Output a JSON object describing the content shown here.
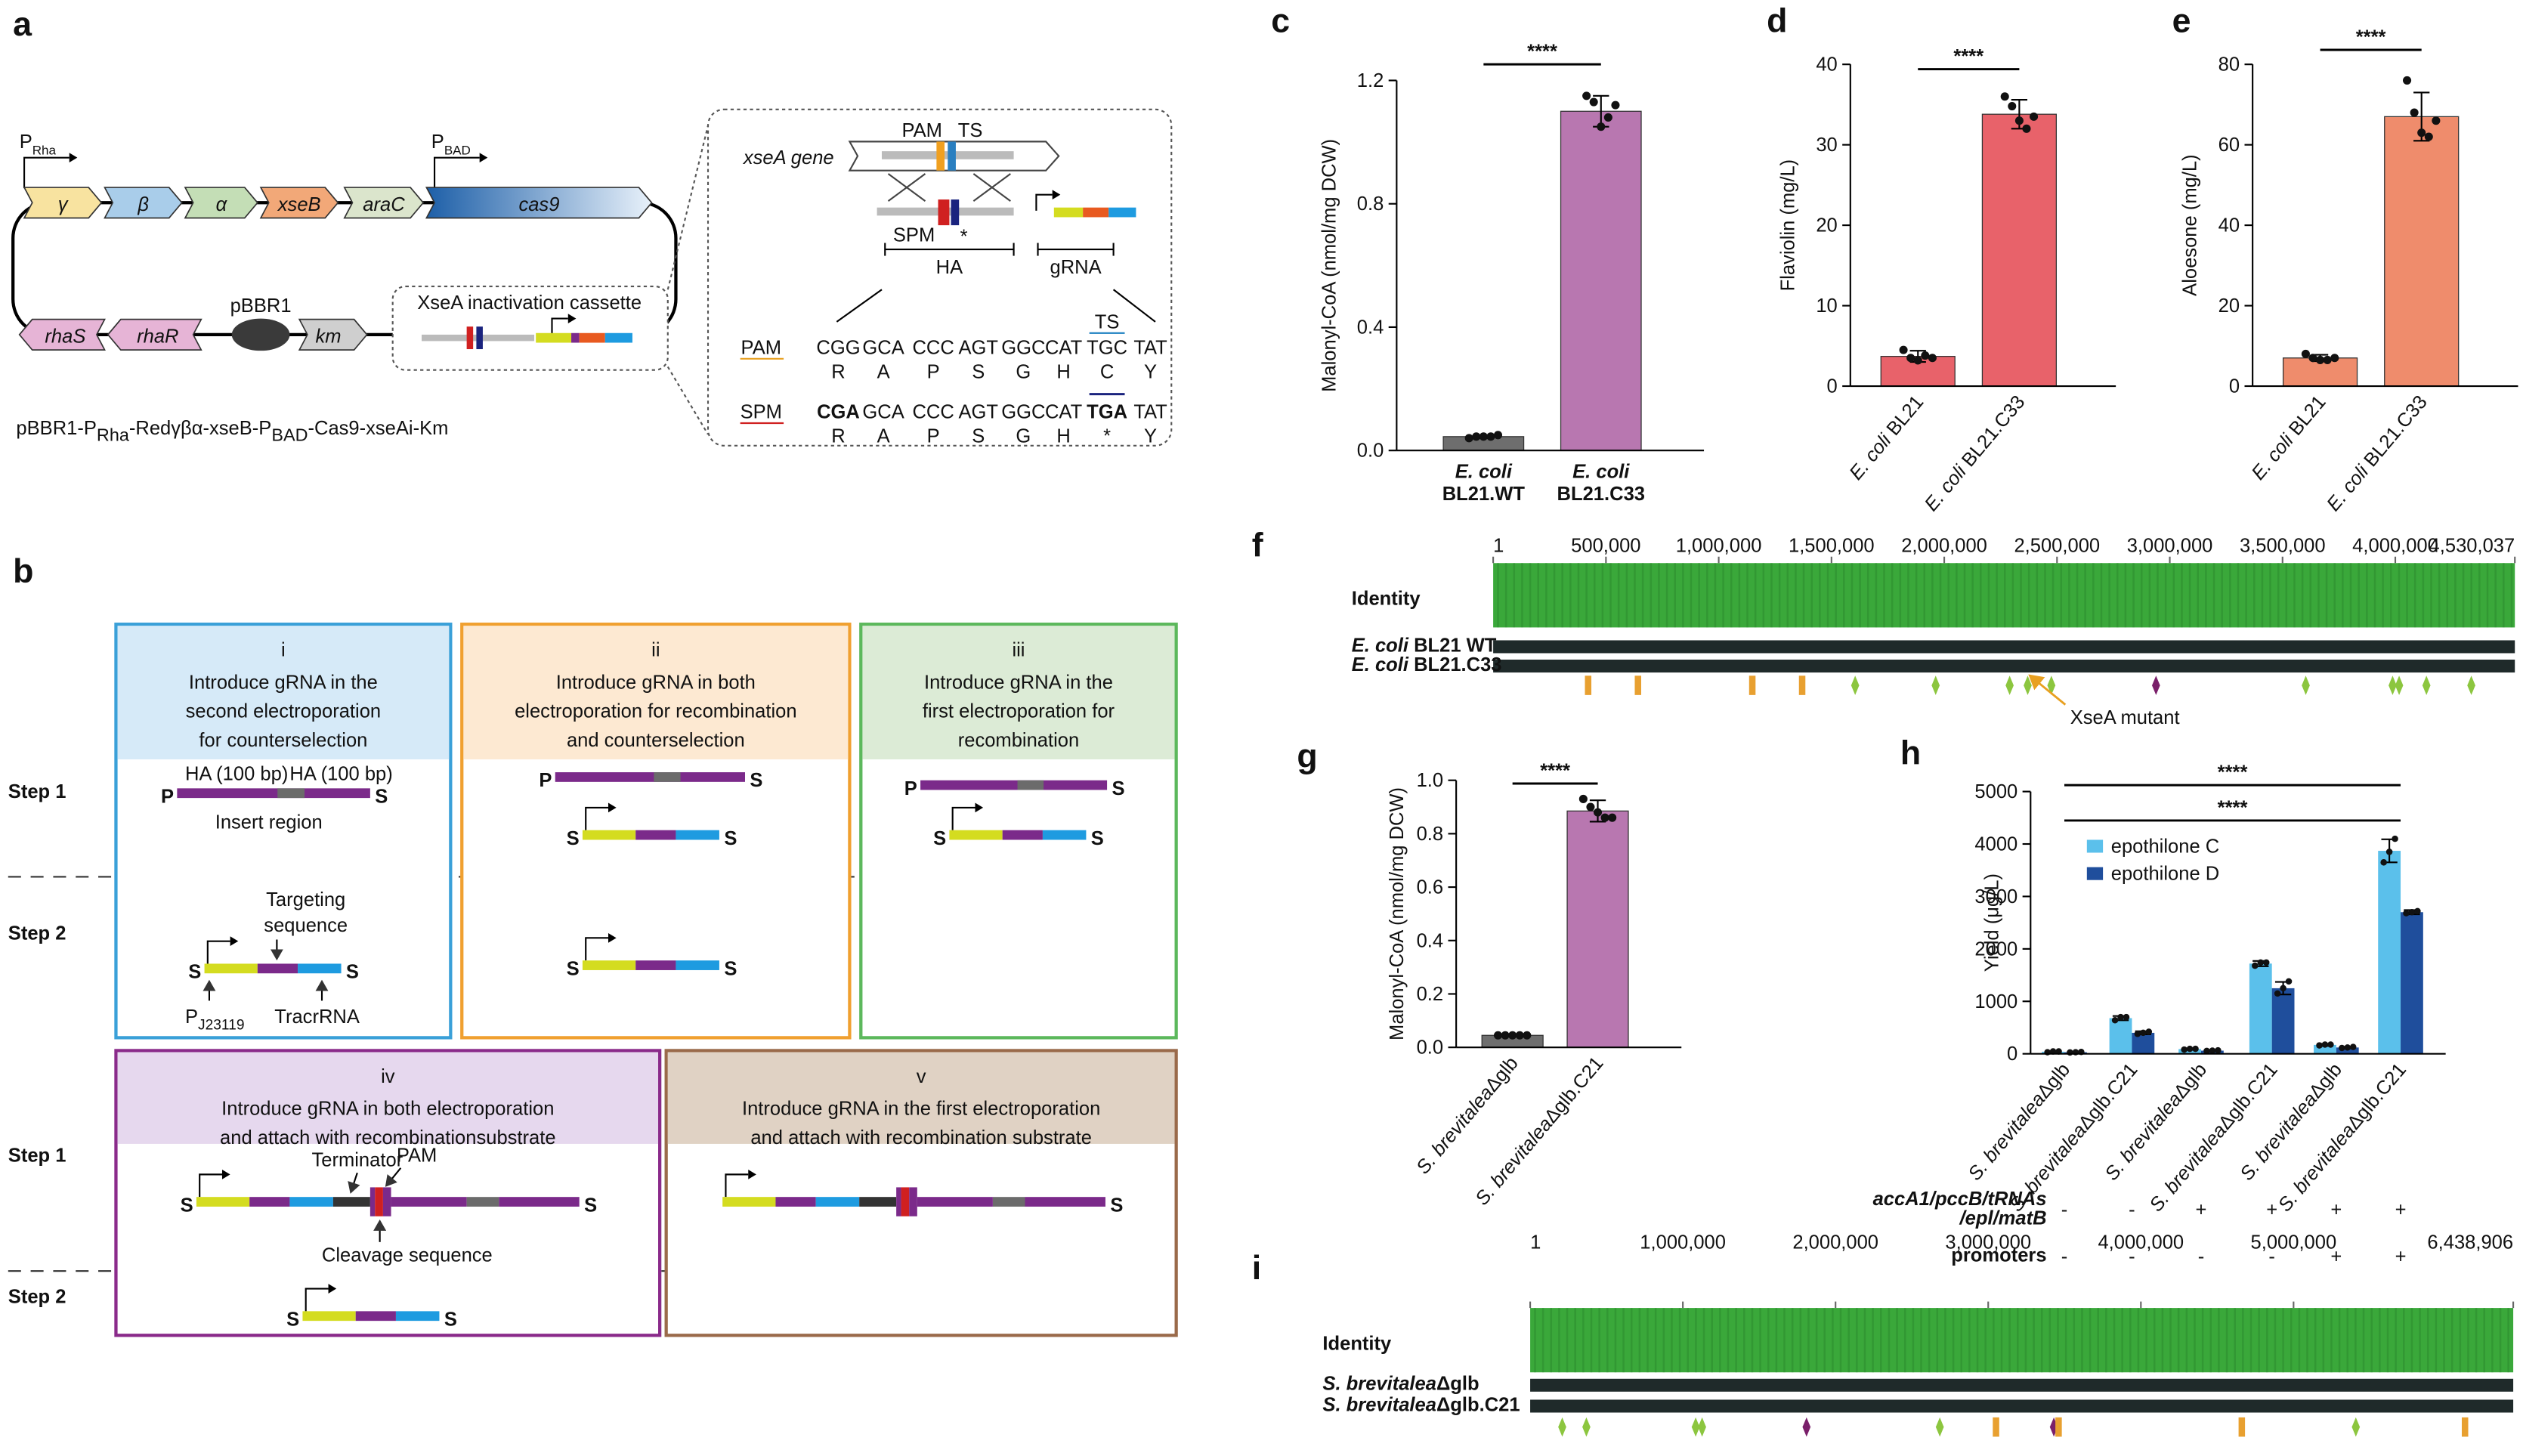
{
  "panels": {
    "a": {
      "label": "a",
      "p_rha": [
        "P",
        "Rha"
      ],
      "p_bad": [
        "P",
        "BAD"
      ],
      "genes": [
        "γ",
        "β",
        "α",
        "xseB",
        "araC",
        "cas9"
      ],
      "genes_bottom": [
        "rhaS",
        "rhaR"
      ],
      "origin": "pBBR1",
      "marker": "km",
      "cassette": "XseA inactivation cassette",
      "caption": [
        "pBBR1-P",
        "Rha",
        "-Redγβα-xseB-P",
        "BAD",
        "-Cas9-xseAi-Km"
      ],
      "inset": {
        "gene": "xseA gene",
        "pam": "PAM",
        "ts": "TS",
        "spm": "SPM",
        "star": "*",
        "ha": "HA",
        "grna": "gRNA",
        "ts_label": "TS",
        "rows": [
          {
            "name": "PAM",
            "codons": [
              "CGG",
              "GCA",
              "CCC",
              "AGT",
              "GGC",
              "CAT",
              "TGC",
              "TAT"
            ],
            "aa": [
              "R",
              "A",
              "P",
              "S",
              "G",
              "H",
              "C",
              "Y"
            ]
          },
          {
            "name": "SPM",
            "codons": [
              "CGA",
              "GCA",
              "CCC",
              "AGT",
              "GGC",
              "CAT",
              "TGA",
              "TAT"
            ],
            "aa": [
              "R",
              "A",
              "P",
              "S",
              "G",
              "H",
              "*",
              "Y"
            ]
          }
        ]
      }
    },
    "b": {
      "label": "b",
      "steps": [
        "Step 1",
        "Step 2",
        "Step 1",
        "Step 2"
      ],
      "boxes": [
        {
          "num": "i",
          "title": [
            "Introduce gRNA in the",
            "second electroporation",
            "for counterselection"
          ],
          "constructs": [
            {
              "left": "P",
              "right": "S"
            },
            {
              "left": "S",
              "right": "S"
            }
          ]
        },
        {
          "num": "ii",
          "title": [
            "Introduce gRNA in both",
            "electroporation for recombination",
            "and counterselection"
          ],
          "constructs": [
            {
              "left": "P",
              "right": "S"
            },
            {
              "left": "S",
              "right": "S"
            },
            {
              "left": "S",
              "right": "S"
            }
          ]
        },
        {
          "num": "iii",
          "title": [
            "Introduce gRNA in the",
            "first electroporation for",
            "recombination"
          ],
          "constructs": [
            {
              "left": "P",
              "right": "S"
            },
            {
              "left": "S",
              "right": "S"
            }
          ]
        },
        {
          "num": "iv",
          "title": [
            "Introduce gRNA in both electroporation",
            "and attach with recombinationsubstrate"
          ],
          "constructs": [
            {
              "left": "S",
              "right": "S"
            },
            {
              "left": "S",
              "right": "S"
            }
          ]
        },
        {
          "num": "v",
          "title": [
            "Introduce gRNA in the first electroporation",
            "and attach with recombination substrate"
          ],
          "constructs": [
            {
              "right": "S"
            }
          ]
        }
      ],
      "annotations": {
        "ha": [
          "HA (100 bp)",
          "HA (100 bp)"
        ],
        "insert": "Insert region",
        "targeting": [
          "Targeting",
          "sequence"
        ],
        "promoter": [
          "P",
          "J23119"
        ],
        "tracr": "TracrRNA",
        "terminator": "Terminator",
        "pam": "PAM",
        "cleavage": "Cleavage sequence"
      }
    }
  },
  "chart_data": [
    {
      "panel": "c",
      "type": "bar",
      "ylabel": "Malonyl-CoA (nmol/mg DCW)",
      "categories": [
        [
          "E. coli",
          "BL21.WT"
        ],
        [
          "E. coli",
          "BL21.C33"
        ]
      ],
      "values": [
        0.045,
        1.1
      ],
      "errors": [
        0.005,
        0.05
      ],
      "points": [
        [
          0.04,
          0.045,
          0.045,
          0.045,
          0.05
        ],
        [
          1.15,
          1.13,
          1.05,
          1.08,
          1.12
        ]
      ],
      "colors": [
        "#6e6e6e",
        "#b877b0"
      ],
      "ylim": [
        0,
        1.2
      ],
      "yticks": [
        {
          "value": 0,
          "label": "0.0"
        },
        0.4,
        0.8,
        1.2
      ],
      "significance": "****"
    },
    {
      "panel": "d",
      "type": "bar",
      "ylabel": "Flaviolin (mg/L)",
      "categories": [
        [
          "E. coli",
          " BL21"
        ],
        [
          "E. coli",
          " BL21.C33"
        ]
      ],
      "values": [
        3.7,
        33.8
      ],
      "errors": [
        0.7,
        1.8
      ],
      "points": [
        [
          4.5,
          3.5,
          3.2,
          3.8,
          3.5
        ],
        [
          36,
          34.8,
          33,
          32,
          33.5
        ]
      ],
      "colors": [
        "#e8626a",
        "#e8626a"
      ],
      "ylim": [
        0,
        40
      ],
      "yticks": [
        0,
        10,
        20,
        30,
        40
      ],
      "significance": "****"
    },
    {
      "panel": "e",
      "type": "bar",
      "ylabel": "Aloesone (mg/L)",
      "categories": [
        [
          "E. coli",
          " BL21"
        ],
        [
          "E. coli",
          " BL21.C33"
        ]
      ],
      "values": [
        7,
        67
      ],
      "errors": [
        0.8,
        6
      ],
      "points": [
        [
          8,
          7,
          6.5,
          6.5,
          7
        ],
        [
          76,
          68,
          63,
          62,
          66
        ]
      ],
      "colors": [
        "#ef8c6c",
        "#ef8c6c"
      ],
      "ylim": [
        0,
        80
      ],
      "yticks": [
        0,
        20,
        40,
        60,
        80
      ],
      "significance": "****"
    },
    {
      "panel": "g",
      "type": "bar",
      "ylabel": "Malonyl-CoA (nmol/mg DCW)",
      "categories": [
        [
          "S. brevitalea",
          "Δglb"
        ],
        [
          "S. brevitalea",
          "Δglb.C21"
        ]
      ],
      "values": [
        0.045,
        0.885
      ],
      "errors": [
        0.003,
        0.04
      ],
      "points": [
        [
          0.045,
          0.045,
          0.045,
          0.045,
          0.045
        ],
        [
          0.93,
          0.9,
          0.88,
          0.86,
          0.86
        ]
      ],
      "colors": [
        "#6e6e6e",
        "#b877b0"
      ],
      "ylim": [
        0,
        1
      ],
      "yticks": [
        {
          "value": 0,
          "label": "0.0"
        },
        0.2,
        0.4,
        0.6,
        0.8,
        {
          "value": 1,
          "label": "1.0"
        }
      ],
      "significance": "****"
    },
    {
      "panel": "h",
      "type": "grouped_bar",
      "ylabel": "Yield (μg/L)",
      "categories": [
        [
          "S. brevitalea",
          "Δglb"
        ],
        [
          "S. brevitalea",
          "Δglb.C21"
        ],
        [
          "S. brevitalea",
          "Δglb"
        ],
        [
          "S. brevitalea",
          "Δglb.C21"
        ],
        [
          "S. brevitalea",
          "Δglb"
        ],
        [
          "S. brevitalea",
          "Δglb.C21"
        ]
      ],
      "series": [
        {
          "name": "epothilone C",
          "color": "#5bc0eb",
          "values": [
            40,
            680,
            90,
            1720,
            170,
            3870
          ],
          "errors": [
            10,
            40,
            15,
            50,
            20,
            220
          ],
          "points": [
            [
              30,
              45,
              45
            ],
            [
              640,
              700,
              700
            ],
            [
              80,
              95,
              95
            ],
            [
              1680,
              1740,
              1740
            ],
            [
              160,
              175,
              175
            ],
            [
              3650,
              3850,
              4100
            ]
          ]
        },
        {
          "name": "epothilone D",
          "color": "#1f4e9c",
          "values": [
            30,
            400,
            60,
            1250,
            120,
            2700
          ],
          "errors": [
            5,
            30,
            10,
            120,
            15,
            40
          ],
          "points": [
            [
              25,
              30,
              35
            ],
            [
              380,
              400,
              420
            ],
            [
              55,
              60,
              65
            ],
            [
              1150,
              1250,
              1380
            ],
            [
              110,
              120,
              130
            ],
            [
              2680,
              2700,
              2720
            ]
          ]
        }
      ],
      "ylim": [
        0,
        5000
      ],
      "yticks": [
        0,
        1000,
        2000,
        3000,
        4000,
        5000
      ],
      "significance": [
        "****",
        "****"
      ],
      "conditions": [
        {
          "label": [
            "accA1/pccB/tRNAs",
            "/epl/matB"
          ],
          "values": [
            "-",
            "-",
            "+",
            "+",
            "+",
            "+"
          ]
        },
        {
          "label": [
            "promoters"
          ],
          "values": [
            "-",
            "-",
            "-",
            "-",
            "+",
            "+"
          ]
        }
      ]
    },
    {
      "panel": "f",
      "type": "track",
      "xlim": [
        1,
        4530037
      ],
      "xticks": [
        1,
        {
          "value": 500000,
          "label": "500,000"
        },
        {
          "value": 1000000,
          "label": "1,000,000"
        },
        {
          "value": 1500000,
          "label": "1,500,000"
        },
        {
          "value": 2000000,
          "label": "2,000,000"
        },
        {
          "value": 2500000,
          "label": "2,500,000"
        },
        {
          "value": 3000000,
          "label": "3,000,000"
        },
        {
          "value": 3500000,
          "label": "3,500,000"
        },
        {
          "value": 4000000,
          "label": "4,000,000"
        },
        {
          "value": 4530037,
          "label": "4,530,037"
        }
      ],
      "identity_label": "Identity",
      "color": "#3aa83a",
      "tracks": [
        [
          "E. coli",
          " BL21 WT"
        ],
        [
          "E. coli",
          " BL21.C33"
        ]
      ],
      "markers": {
        "x": [
          421000,
          642000,
          1149000,
          1370000,
          1605000,
          1962000,
          2290000,
          2370000,
          2475000,
          2939000,
          3603000,
          3988000,
          4017000,
          4138000,
          4337000
        ],
        "colors": [
          "#e8a030",
          "#e8a030",
          "#e8a030",
          "#e8a030",
          "#8cc63f",
          "#8cc63f",
          "#8cc63f",
          "#8cc63f",
          "#8cc63f",
          "#7a1f6a",
          "#8cc63f",
          "#8cc63f",
          "#8cc63f",
          "#8cc63f",
          "#8cc63f"
        ]
      },
      "annotation": {
        "text": "XseA mutant",
        "x": 2380000
      }
    },
    {
      "panel": "i",
      "type": "track",
      "xlim": [
        1,
        6438906
      ],
      "xticks": [
        1,
        {
          "value": 1000000,
          "label": "1,000,000"
        },
        {
          "value": 2000000,
          "label": "2,000,000"
        },
        {
          "value": 3000000,
          "label": "3,000,000"
        },
        {
          "value": 4000000,
          "label": "4,000,000"
        },
        {
          "value": 5000000,
          "label": "5,000,000"
        },
        {
          "value": 6438906,
          "label": "6,438,906"
        }
      ],
      "identity_label": "Identity",
      "color": "#3aa83a",
      "tracks": [
        [
          "S. brevitalea",
          "Δglb"
        ],
        [
          "S. brevitalea",
          "Δglb.C21"
        ]
      ],
      "markers": {
        "x": [
          210000,
          368000,
          1084000,
          1126000,
          1810000,
          2683000,
          3051000,
          3430000,
          3461000,
          4661000,
          5408000,
          6123000
        ],
        "colors": [
          "#8cc63f",
          "#8cc63f",
          "#8cc63f",
          "#8cc63f",
          "#7a1f6a",
          "#8cc63f",
          "#e8a030",
          "#7a1f6a",
          "#e8a030",
          "#e8a030",
          "#8cc63f",
          "#e8a030"
        ]
      }
    }
  ]
}
